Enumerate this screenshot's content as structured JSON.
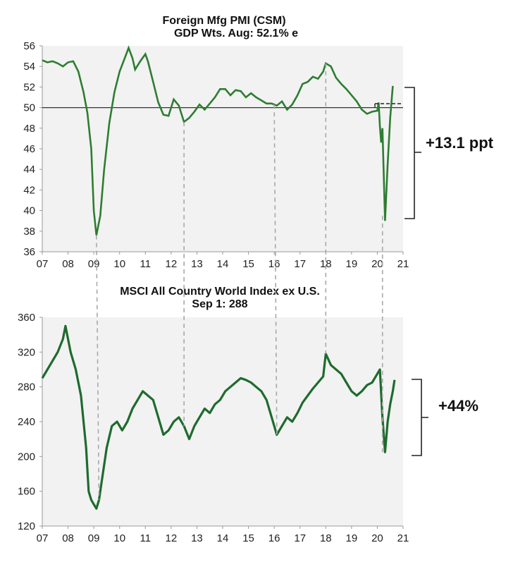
{
  "chart_data": [
    {
      "type": "line",
      "title": "Foreign Mfg PMI (CSM)",
      "subtitle": "GDP Wts.  Aug: 52.1% e",
      "xlabel": "",
      "ylabel": "",
      "xlim": [
        2007,
        2021
      ],
      "ylim": [
        36,
        56
      ],
      "yticks": [
        36,
        38,
        40,
        42,
        44,
        46,
        48,
        50,
        52,
        54,
        56
      ],
      "xtick_labels": [
        "07",
        "08",
        "09",
        "10",
        "11",
        "12",
        "13",
        "14",
        "15",
        "16",
        "17",
        "18",
        "19",
        "20",
        "21"
      ],
      "reference_line": 50,
      "grid": false,
      "color": "#2e7d32",
      "annotation": "+13.1 ppt",
      "series": [
        {
          "x": [
            2007.0,
            2007.2,
            2007.4,
            2007.6,
            2007.8,
            2008.0,
            2008.2,
            2008.4,
            2008.6,
            2008.75,
            2008.9,
            2009.0,
            2009.1,
            2009.25,
            2009.4,
            2009.6,
            2009.8,
            2010.0,
            2010.2,
            2010.35,
            2010.5,
            2010.6,
            2010.8,
            2011.0,
            2011.1,
            2011.3,
            2011.5,
            2011.7,
            2011.9,
            2012.1,
            2012.3,
            2012.5,
            2012.7,
            2012.9,
            2013.1,
            2013.3,
            2013.5,
            2013.7,
            2013.9,
            2014.1,
            2014.3,
            2014.5,
            2014.7,
            2014.9,
            2015.1,
            2015.3,
            2015.5,
            2015.7,
            2015.9,
            2016.1,
            2016.3,
            2016.5,
            2016.7,
            2016.9,
            2017.1,
            2017.3,
            2017.5,
            2017.7,
            2017.9,
            2018.0,
            2018.2,
            2018.4,
            2018.6,
            2018.8,
            2019.0,
            2019.2,
            2019.4,
            2019.6,
            2019.8,
            2020.0,
            2020.05,
            2020.1,
            2020.15,
            2020.2,
            2020.3,
            2020.4,
            2020.5,
            2020.6
          ],
          "y": [
            54.6,
            54.4,
            54.5,
            54.3,
            54.0,
            54.4,
            54.5,
            53.5,
            51.5,
            49.5,
            46,
            40,
            37.6,
            39.5,
            44,
            48.5,
            51.5,
            53.5,
            54.8,
            55.8,
            54.8,
            53.7,
            54.5,
            55.2,
            54.5,
            52.5,
            50.5,
            49.3,
            49.2,
            50.8,
            50.2,
            48.6,
            49.0,
            49.6,
            50.3,
            49.8,
            50.4,
            51.0,
            51.8,
            51.8,
            51.2,
            51.7,
            51.6,
            51.0,
            51.4,
            51.0,
            50.7,
            50.4,
            50.4,
            50.2,
            50.6,
            49.8,
            50.3,
            51.2,
            52.3,
            52.5,
            53.0,
            52.8,
            53.5,
            54.3,
            54.0,
            52.9,
            52.3,
            51.8,
            51.2,
            50.6,
            49.8,
            49.4,
            49.6,
            49.7,
            50.5,
            48.2,
            46.6,
            48.0,
            39.0,
            44.5,
            49.0,
            52.1
          ]
        }
      ]
    },
    {
      "type": "line",
      "title": "MSCI All  Country World Index ex U.S.",
      "subtitle": "Sep 1: 288",
      "xlabel": "",
      "ylabel": "",
      "xlim": [
        2007,
        2021
      ],
      "ylim": [
        120,
        360
      ],
      "yticks": [
        120,
        160,
        200,
        240,
        280,
        320,
        360
      ],
      "xtick_labels": [
        "07",
        "08",
        "09",
        "10",
        "11",
        "12",
        "13",
        "14",
        "15",
        "16",
        "17",
        "18",
        "19",
        "20",
        "21"
      ],
      "grid": false,
      "color": "#1e6b2e",
      "annotation": "+44%",
      "series": [
        {
          "x": [
            2007.0,
            2007.2,
            2007.4,
            2007.6,
            2007.8,
            2007.9,
            2008.1,
            2008.3,
            2008.5,
            2008.7,
            2008.8,
            2008.9,
            2009.0,
            2009.1,
            2009.2,
            2009.3,
            2009.5,
            2009.7,
            2009.9,
            2010.1,
            2010.3,
            2010.5,
            2010.7,
            2010.9,
            2011.1,
            2011.3,
            2011.5,
            2011.7,
            2011.9,
            2012.1,
            2012.3,
            2012.5,
            2012.7,
            2012.9,
            2013.1,
            2013.3,
            2013.5,
            2013.7,
            2013.9,
            2014.1,
            2014.3,
            2014.5,
            2014.7,
            2014.9,
            2015.1,
            2015.3,
            2015.5,
            2015.7,
            2015.9,
            2016.1,
            2016.3,
            2016.5,
            2016.7,
            2016.9,
            2017.1,
            2017.3,
            2017.5,
            2017.7,
            2017.9,
            2018.0,
            2018.2,
            2018.4,
            2018.6,
            2018.8,
            2019.0,
            2019.2,
            2019.4,
            2019.6,
            2019.8,
            2020.0,
            2020.1,
            2020.2,
            2020.3,
            2020.4,
            2020.5,
            2020.6,
            2020.67
          ],
          "y": [
            290,
            300,
            310,
            320,
            335,
            350,
            320,
            300,
            270,
            210,
            160,
            150,
            145,
            140,
            150,
            170,
            210,
            235,
            240,
            230,
            240,
            255,
            265,
            275,
            270,
            265,
            245,
            225,
            230,
            240,
            245,
            235,
            220,
            235,
            245,
            255,
            250,
            260,
            265,
            275,
            280,
            285,
            290,
            288,
            285,
            280,
            275,
            265,
            245,
            225,
            235,
            245,
            240,
            250,
            262,
            270,
            278,
            285,
            292,
            318,
            305,
            300,
            295,
            285,
            275,
            270,
            275,
            282,
            285,
            295,
            300,
            245,
            205,
            240,
            260,
            275,
            288
          ]
        }
      ]
    }
  ]
}
